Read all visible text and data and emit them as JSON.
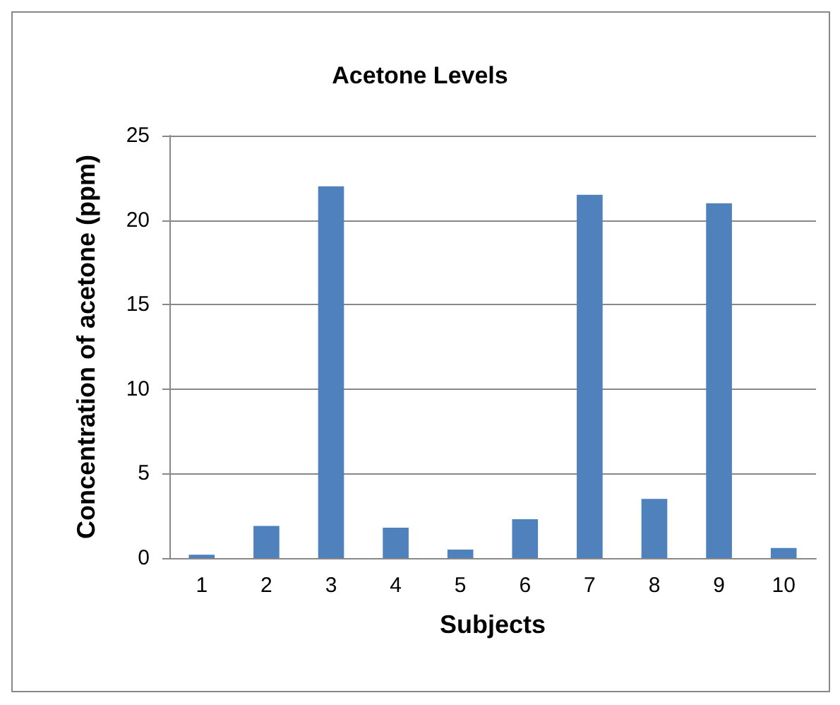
{
  "chart_data": {
    "type": "bar",
    "title": "Acetone Levels",
    "xlabel": "Subjects",
    "ylabel": "Concentration of acetone (ppm)",
    "categories": [
      "1",
      "2",
      "3",
      "4",
      "5",
      "6",
      "7",
      "8",
      "9",
      "10"
    ],
    "values": [
      0.2,
      1.9,
      22,
      1.8,
      0.5,
      2.3,
      21.5,
      3.5,
      21,
      0.6
    ],
    "color": "#4f81bd",
    "ylim": [
      0,
      25
    ],
    "yticks": [
      0,
      5,
      10,
      15,
      20,
      25
    ],
    "grid": "y"
  }
}
